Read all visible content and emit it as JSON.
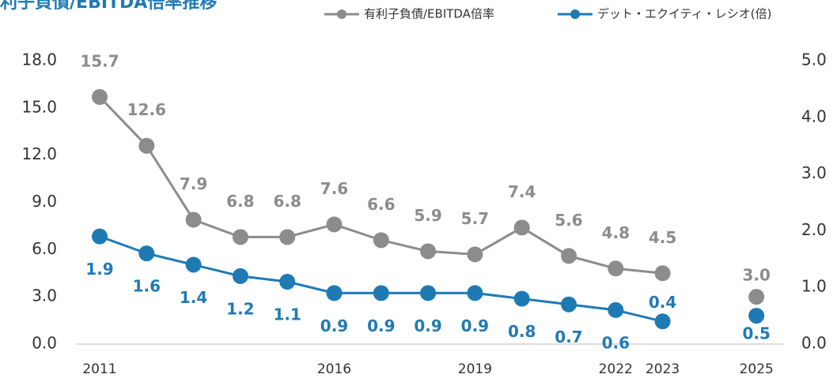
{
  "chart_data": {
    "type": "line",
    "title": "利子負債/EBITDA倍率推移",
    "categories": [
      "2011",
      null,
      null,
      null,
      null,
      "2016",
      null,
      null,
      "2019",
      null,
      null,
      "2022",
      "2023",
      null,
      "2025"
    ],
    "series": [
      {
        "name": "有利子負債/EBITDA倍率",
        "color": "#8c8c8c",
        "axis": "y",
        "values": [
          15.7,
          12.6,
          7.9,
          6.8,
          6.8,
          7.6,
          6.6,
          5.9,
          5.7,
          7.4,
          5.6,
          4.8,
          4.5,
          null,
          3.0
        ],
        "value_labels": [
          "15.7",
          "12.6",
          "7.9",
          "6.8",
          "6.8",
          "7.6",
          "6.6",
          "5.9",
          "5.7",
          "7.4",
          "5.6",
          "4.8",
          "4.5",
          null,
          "3.0"
        ]
      },
      {
        "name": "デット・エクイティ・レシオ(倍)",
        "color": "#1f7ab4",
        "axis": "y2",
        "values": [
          1.9,
          1.6,
          1.4,
          1.2,
          1.1,
          0.9,
          0.9,
          0.9,
          0.9,
          0.8,
          0.7,
          0.6,
          0.4,
          null,
          0.5
        ]
      }
    ],
    "ylim": [
      0,
      18
    ],
    "yticks": [
      {
        "value": 0,
        "label": "0.0"
      },
      {
        "value": 3,
        "label": "3.0"
      },
      {
        "value": 6,
        "label": "6.0"
      },
      {
        "value": 9,
        "label": "9.0"
      },
      {
        "value": 12,
        "label": "12.0"
      },
      {
        "value": 15,
        "label": "15.0"
      },
      {
        "value": 18,
        "label": "18.0"
      }
    ],
    "y2lim": [
      0,
      5
    ],
    "y2ticks": [
      {
        "value": 0,
        "label": "0.0"
      },
      {
        "value": 1,
        "label": "1.0"
      },
      {
        "value": 2,
        "label": "2.0"
      },
      {
        "value": 3,
        "label": "3.0"
      },
      {
        "value": 4,
        "label": "4.0"
      },
      {
        "value": 5,
        "label": "5.0"
      }
    ],
    "legend": "top"
  }
}
